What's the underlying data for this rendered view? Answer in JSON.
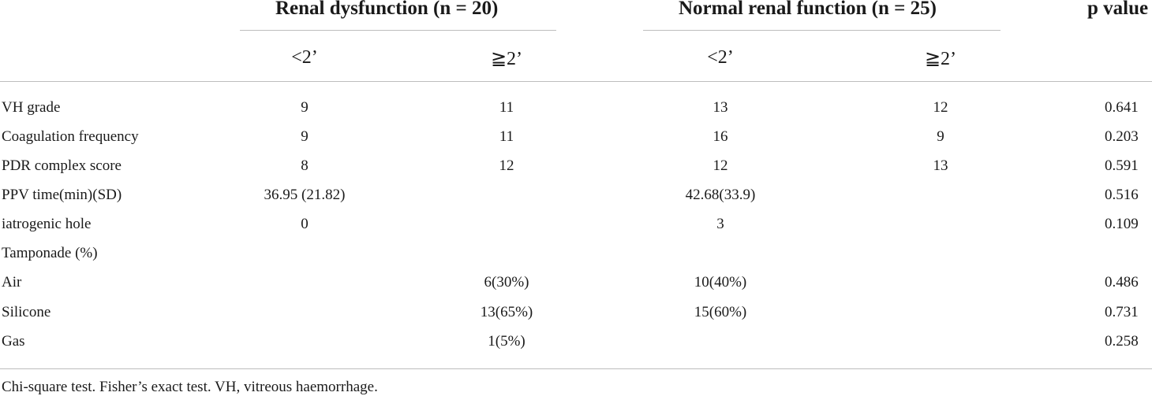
{
  "header": {
    "group1": "Renal dysfunction (n = 20)",
    "group2": "Normal renal function (n = 25)",
    "pvalue": "p value",
    "sub": [
      "<2’",
      "≧2’",
      "<2’",
      "≧2’"
    ]
  },
  "rows": [
    {
      "label": "VH grade",
      "c1": "9",
      "c2": "11",
      "c3": "13",
      "c4": "12",
      "p": "0.641"
    },
    {
      "label": "Coagulation frequency",
      "c1": "9",
      "c2": "11",
      "c3": "16",
      "c4": "9",
      "p": "0.203"
    },
    {
      "label": "PDR complex score",
      "c1": "8",
      "c2": "12",
      "c3": "12",
      "c4": "13",
      "p": "0.591"
    },
    {
      "label": "PPV time(min)(SD)",
      "c1": "36.95 (21.82)",
      "c2": "",
      "c3": "42.68(33.9)",
      "c4": "",
      "p": "0.516"
    },
    {
      "label": "iatrogenic hole",
      "c1": "0",
      "c2": "",
      "c3": "3",
      "c4": "",
      "p": "0.109"
    },
    {
      "label": "Tamponade (%)",
      "c1": "",
      "c2": "",
      "c3": "",
      "c4": "",
      "p": ""
    },
    {
      "label": "Air",
      "c1": "",
      "c2": "6(30%)",
      "c3": "10(40%)",
      "c4": "",
      "p": "0.486"
    },
    {
      "label": "Silicone",
      "c1": "",
      "c2": "13(65%)",
      "c3": "15(60%)",
      "c4": "",
      "p": "0.731"
    },
    {
      "label": "Gas",
      "c1": "",
      "c2": "1(5%)",
      "c3": "",
      "c4": "",
      "p": "0.258"
    }
  ],
  "footnote": "Chi-square test. Fisher’s exact test. VH, vitreous haemorrhage."
}
